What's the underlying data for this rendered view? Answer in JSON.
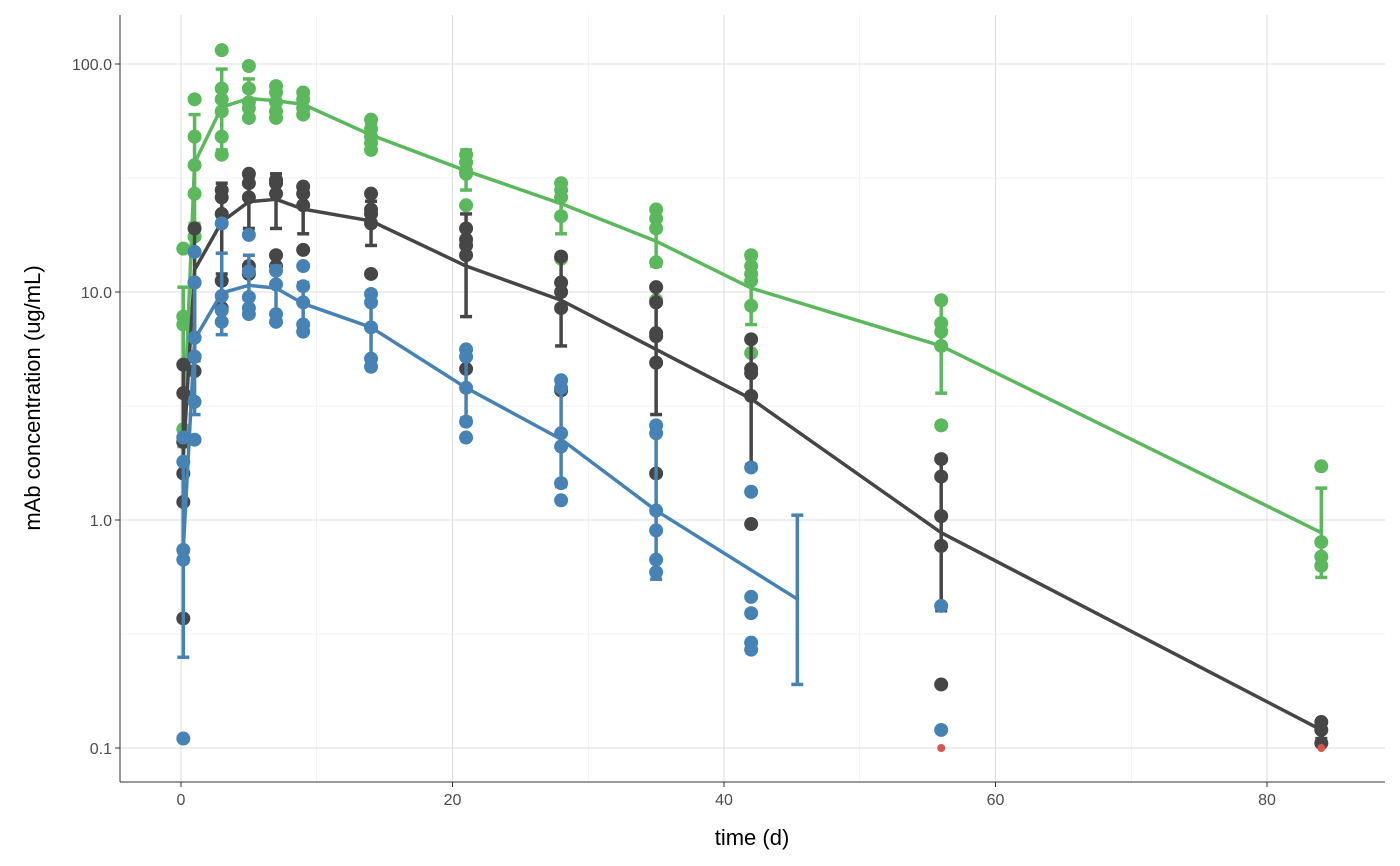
{
  "chart_data": {
    "type": "line",
    "title": "",
    "xlabel": "time (d)",
    "ylabel": "mAb concentration (ug/mL)",
    "xlim": [
      -4.5,
      88.5
    ],
    "ylim": [
      0.07,
      160
    ],
    "yscale": "log10",
    "grid": true,
    "x_ticks": [
      0,
      20,
      40,
      60,
      80
    ],
    "x_tick_labels": [
      "0",
      "20",
      "40",
      "60",
      "80"
    ],
    "y_ticks": [
      0.1,
      1,
      10,
      100
    ],
    "y_tick_labels": [
      "0.1",
      "1.0",
      "10.0",
      "100.0"
    ],
    "series": [
      {
        "color": "#5cb85c",
        "mean": {
          "x": [
            0.17,
            1,
            3,
            5,
            7,
            9,
            14,
            21,
            28,
            35,
            42,
            56,
            84
          ],
          "y": [
            2.24,
            36.8,
            64.7,
            70.6,
            69,
            66.5,
            48.8,
            34,
            24.4,
            16.7,
            10.4,
            5.8,
            0.88
          ]
        },
        "error": {
          "x": [
            0.17,
            1,
            3,
            5,
            7,
            9,
            14,
            21,
            28,
            35,
            42,
            56,
            84
          ],
          "lower": [
            2.1,
            20,
            42,
            58,
            60,
            60,
            43,
            28,
            18,
            13,
            7.2,
            3.6,
            0.56
          ],
          "upper": [
            10.5,
            60,
            95,
            86,
            80,
            72,
            55,
            42,
            30,
            21,
            14,
            9.0,
            1.38
          ]
        },
        "points": [
          [
            0.17,
            15.5
          ],
          [
            0.17,
            7.8
          ],
          [
            0.17,
            7.2
          ],
          [
            0.17,
            2.5
          ],
          [
            0.17,
            2.3
          ],
          [
            0.17,
            2.2
          ],
          [
            1,
            70
          ],
          [
            1,
            48
          ],
          [
            1,
            36
          ],
          [
            1,
            27
          ],
          [
            1,
            17.5
          ],
          [
            3,
            115
          ],
          [
            3,
            78
          ],
          [
            3,
            70
          ],
          [
            3,
            62
          ],
          [
            3,
            48
          ],
          [
            3,
            40
          ],
          [
            5,
            98
          ],
          [
            5,
            78
          ],
          [
            5,
            68
          ],
          [
            5,
            64
          ],
          [
            5,
            58
          ],
          [
            7,
            80
          ],
          [
            7,
            75
          ],
          [
            7,
            68
          ],
          [
            7,
            62
          ],
          [
            7,
            58
          ],
          [
            9,
            75
          ],
          [
            9,
            70
          ],
          [
            9,
            64
          ],
          [
            9,
            60
          ],
          [
            14,
            57
          ],
          [
            14,
            52
          ],
          [
            14,
            48
          ],
          [
            14,
            45
          ],
          [
            14,
            42
          ],
          [
            21,
            40
          ],
          [
            21,
            37
          ],
          [
            21,
            34
          ],
          [
            21,
            33
          ],
          [
            21,
            24
          ],
          [
            28,
            30
          ],
          [
            28,
            28
          ],
          [
            28,
            26
          ],
          [
            28,
            21.5
          ],
          [
            28,
            14
          ],
          [
            35,
            23
          ],
          [
            35,
            21
          ],
          [
            35,
            19
          ],
          [
            35,
            13.5
          ],
          [
            35,
            9.2
          ],
          [
            42,
            14.5
          ],
          [
            42,
            13
          ],
          [
            42,
            12
          ],
          [
            42,
            11.2
          ],
          [
            42,
            8.7
          ],
          [
            42,
            5.4
          ],
          [
            56,
            9.2
          ],
          [
            56,
            7.3
          ],
          [
            56,
            6.7
          ],
          [
            56,
            5.8
          ],
          [
            56,
            2.6
          ],
          [
            84,
            1.72
          ],
          [
            84,
            0.8
          ],
          [
            84,
            0.69
          ],
          [
            84,
            0.63
          ]
        ]
      },
      {
        "color": "#464646",
        "mean": {
          "x": [
            0.17,
            1,
            3,
            5,
            7,
            9,
            14,
            21,
            28,
            35,
            42,
            56,
            84
          ],
          "y": [
            1.9,
            12.5,
            20.3,
            24.9,
            25.5,
            23.1,
            20.5,
            13,
            9.2,
            5.6,
            3.4,
            0.88,
            0.12
          ]
        },
        "error": {
          "x": [
            0.17,
            1,
            3,
            5,
            7,
            9,
            14,
            21,
            28,
            35,
            42,
            56,
            84
          ],
          "lower": [
            0.72,
            5,
            12,
            19,
            19,
            18,
            16,
            7.8,
            5.8,
            2.9,
            1.75,
            0.4,
            0.11
          ],
          "upper": [
            4.8,
            19.5,
            30,
            32,
            33,
            29,
            25,
            22,
            14.5,
            10.5,
            6.2,
            1.9,
            0.13
          ]
        },
        "points": [
          [
            0.17,
            4.8
          ],
          [
            0.17,
            3.6
          ],
          [
            0.17,
            2.2
          ],
          [
            0.17,
            1.6
          ],
          [
            0.17,
            1.2
          ],
          [
            0.17,
            0.37
          ],
          [
            1,
            19
          ],
          [
            1,
            11
          ],
          [
            1,
            5.2
          ],
          [
            1,
            4.5
          ],
          [
            3,
            28
          ],
          [
            3,
            26
          ],
          [
            3,
            22
          ],
          [
            3,
            11.2
          ],
          [
            3,
            8.5
          ],
          [
            5,
            33
          ],
          [
            5,
            30
          ],
          [
            5,
            26
          ],
          [
            5,
            13
          ],
          [
            5,
            12
          ],
          [
            7,
            31
          ],
          [
            7,
            30
          ],
          [
            7,
            27
          ],
          [
            7,
            14.5
          ],
          [
            7,
            13
          ],
          [
            9,
            29
          ],
          [
            9,
            27
          ],
          [
            9,
            24
          ],
          [
            9,
            15.3
          ],
          [
            14,
            27
          ],
          [
            14,
            23
          ],
          [
            14,
            22
          ],
          [
            14,
            20
          ],
          [
            14,
            12
          ],
          [
            21,
            19
          ],
          [
            21,
            17
          ],
          [
            21,
            16
          ],
          [
            21,
            14.5
          ],
          [
            21,
            4.6
          ],
          [
            28,
            14.3
          ],
          [
            28,
            11
          ],
          [
            28,
            10
          ],
          [
            28,
            8.5
          ],
          [
            28,
            3.7
          ],
          [
            35,
            10.5
          ],
          [
            35,
            9
          ],
          [
            35,
            6.6
          ],
          [
            35,
            6.4
          ],
          [
            35,
            4.9
          ],
          [
            35,
            1.6
          ],
          [
            42,
            6.2
          ],
          [
            42,
            4.6
          ],
          [
            42,
            4.4
          ],
          [
            42,
            3.5
          ],
          [
            42,
            0.96
          ],
          [
            56,
            1.85
          ],
          [
            56,
            1.55
          ],
          [
            56,
            1.04
          ],
          [
            56,
            0.77
          ],
          [
            56,
            0.19
          ],
          [
            84,
            0.13
          ],
          [
            84,
            0.12
          ],
          [
            84,
            0.105
          ]
        ]
      },
      {
        "color": "#4682b4",
        "mean": {
          "x": [
            0.17,
            1,
            3,
            5,
            7,
            9,
            14,
            21,
            28,
            35,
            45.4
          ],
          "y": [
            0.75,
            6.2,
            9.9,
            10.7,
            10.4,
            8.9,
            7.0,
            3.8,
            2.26,
            1.1,
            0.45
          ]
        },
        "error": {
          "x": [
            0.17,
            1,
            3,
            5,
            7,
            9,
            14,
            21,
            28,
            35,
            45.4
          ],
          "lower": [
            0.25,
            2.9,
            6.5,
            8.5,
            8,
            7,
            5,
            2.8,
            1.4,
            0.55,
            0.19
          ],
          "upper": [
            1.8,
            11,
            14.8,
            14.5,
            13,
            11,
            9.8,
            5.2,
            3.7,
            2.5,
            1.05
          ]
        },
        "points": [
          [
            0.17,
            2.3
          ],
          [
            0.17,
            1.8
          ],
          [
            0.17,
            0.74
          ],
          [
            0.17,
            0.67
          ],
          [
            0.17,
            0.11
          ],
          [
            1,
            15
          ],
          [
            1,
            11
          ],
          [
            1,
            6.3
          ],
          [
            1,
            5.2
          ],
          [
            1,
            3.3
          ],
          [
            1,
            2.25
          ],
          [
            3,
            20
          ],
          [
            3,
            9.6
          ],
          [
            3,
            8.3
          ],
          [
            3,
            7.4
          ],
          [
            5,
            17.8
          ],
          [
            5,
            12.3
          ],
          [
            5,
            9.5
          ],
          [
            5,
            8.5
          ],
          [
            5,
            8
          ],
          [
            7,
            12.4
          ],
          [
            7,
            10.8
          ],
          [
            7,
            8
          ],
          [
            7,
            7.4
          ],
          [
            9,
            13
          ],
          [
            9,
            10.6
          ],
          [
            9,
            9
          ],
          [
            9,
            7.2
          ],
          [
            9,
            6.7
          ],
          [
            14,
            9.8
          ],
          [
            14,
            9
          ],
          [
            14,
            7
          ],
          [
            14,
            5.1
          ],
          [
            14,
            4.7
          ],
          [
            21,
            5.6
          ],
          [
            21,
            5.2
          ],
          [
            21,
            3.8
          ],
          [
            21,
            2.7
          ],
          [
            21,
            2.3
          ],
          [
            28,
            4.1
          ],
          [
            28,
            3.8
          ],
          [
            28,
            2.4
          ],
          [
            28,
            2.1
          ],
          [
            28,
            1.45
          ],
          [
            28,
            1.22
          ],
          [
            35,
            2.6
          ],
          [
            35,
            2.4
          ],
          [
            35,
            1.1
          ],
          [
            35,
            0.9
          ],
          [
            35,
            0.67
          ],
          [
            35,
            0.59
          ],
          [
            42,
            1.7
          ],
          [
            42,
            1.33
          ],
          [
            42,
            0.46
          ],
          [
            42,
            0.39
          ],
          [
            42,
            0.29
          ],
          [
            42,
            0.27
          ],
          [
            56,
            0.42
          ],
          [
            56,
            0.12
          ]
        ]
      }
    ],
    "blq_points": {
      "color": "#d9534f",
      "points": [
        [
          56,
          0.1
        ],
        [
          84,
          0.1
        ]
      ]
    }
  }
}
